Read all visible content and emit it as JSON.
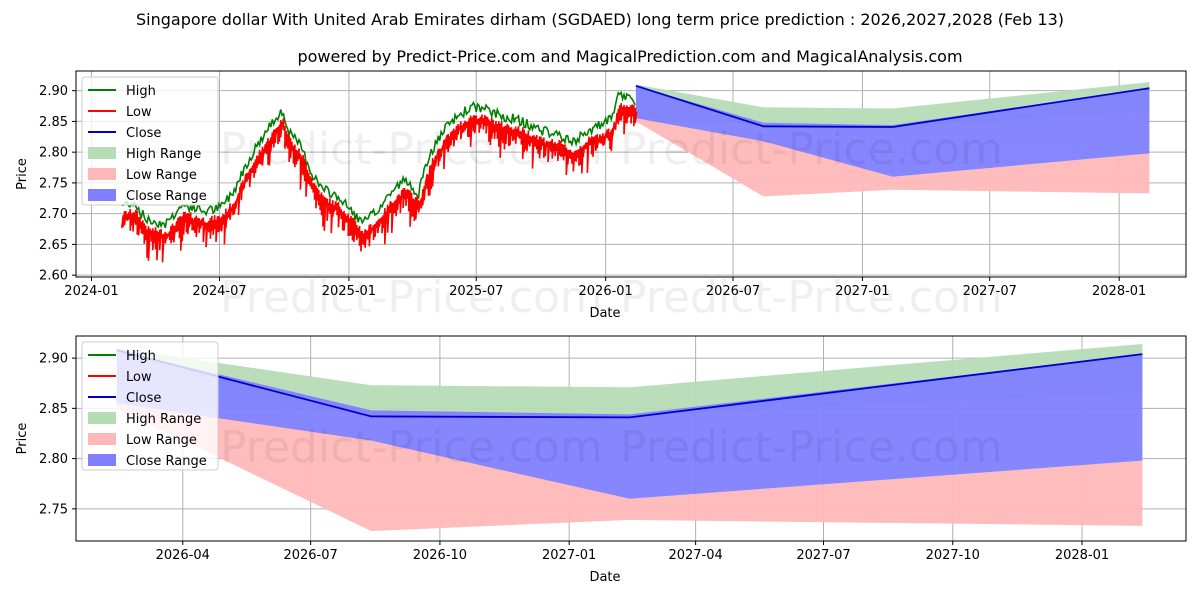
{
  "title": "Singapore dollar With United Arab Emirates dirham (SGDAED) long term price prediction : 2026,2027,2028 (Feb 13)",
  "subtitle": "powered by Predict-Price.com and MagicalPrediction.com and MagicalAnalysis.com",
  "watermark": "Predict-Price.com",
  "colors": {
    "high": "#008000",
    "low": "#ff0000",
    "close": "#0000cc",
    "high_range": "#b6dcb6",
    "low_range": "#ffb8b8",
    "close_range": "#7f7fff"
  },
  "legend": [
    "High",
    "Low",
    "Close",
    "High Range",
    "Low Range",
    "Close Range"
  ],
  "chart_data": [
    {
      "type": "line",
      "name": "top",
      "xlabel": "Date",
      "ylabel": "Price",
      "xlim": [
        "2023-12-10",
        "2028-04-05"
      ],
      "ylim": [
        2.597,
        2.932
      ],
      "yticks": [
        "2.60",
        "2.65",
        "2.70",
        "2.75",
        "2.80",
        "2.85",
        "2.90"
      ],
      "xticks": [
        [
          "2024-01-01",
          "2024-01"
        ],
        [
          "2024-07-01",
          "2024-07"
        ],
        [
          "2025-01-01",
          "2025-01"
        ],
        [
          "2025-07-01",
          "2025-07"
        ],
        [
          "2026-01-01",
          "2026-01"
        ],
        [
          "2026-07-01",
          "2026-07"
        ],
        [
          "2027-01-01",
          "2027-01"
        ],
        [
          "2027-07-01",
          "2027-07"
        ],
        [
          "2028-01-01",
          "2028-01"
        ]
      ],
      "history_close": [
        [
          "2024-02-13",
          2.7
        ],
        [
          "2024-03-01",
          2.705
        ],
        [
          "2024-03-20",
          2.675
        ],
        [
          "2024-04-15",
          2.67
        ],
        [
          "2024-05-10",
          2.7
        ],
        [
          "2024-06-10",
          2.69
        ],
        [
          "2024-07-01",
          2.695
        ],
        [
          "2024-07-20",
          2.72
        ],
        [
          "2024-08-05",
          2.76
        ],
        [
          "2024-08-25",
          2.8
        ],
        [
          "2024-09-15",
          2.835
        ],
        [
          "2024-09-27",
          2.855
        ],
        [
          "2024-10-10",
          2.815
        ],
        [
          "2024-10-25",
          2.795
        ],
        [
          "2024-11-10",
          2.75
        ],
        [
          "2024-11-25",
          2.725
        ],
        [
          "2024-12-15",
          2.715
        ],
        [
          "2025-01-05",
          2.69
        ],
        [
          "2025-01-20",
          2.67
        ],
        [
          "2025-02-10",
          2.69
        ],
        [
          "2025-03-01",
          2.72
        ],
        [
          "2025-03-20",
          2.74
        ],
        [
          "2025-04-10",
          2.72
        ],
        [
          "2025-04-25",
          2.78
        ],
        [
          "2025-05-15",
          2.82
        ],
        [
          "2025-06-05",
          2.845
        ],
        [
          "2025-06-25",
          2.86
        ],
        [
          "2025-07-15",
          2.855
        ],
        [
          "2025-08-05",
          2.845
        ],
        [
          "2025-08-25",
          2.84
        ],
        [
          "2025-09-15",
          2.83
        ],
        [
          "2025-10-05",
          2.82
        ],
        [
          "2025-10-25",
          2.815
        ],
        [
          "2025-11-15",
          2.8
        ],
        [
          "2025-12-05",
          2.82
        ],
        [
          "2025-12-25",
          2.83
        ],
        [
          "2026-01-10",
          2.84
        ],
        [
          "2026-01-20",
          2.88
        ],
        [
          "2026-02-13",
          2.87
        ]
      ],
      "forecast": {
        "dates": [
          "2026-02-13",
          "2026-08-13",
          "2027-02-13",
          "2028-02-13"
        ],
        "close": [
          2.908,
          2.842,
          2.841,
          2.904
        ],
        "high_range_top": [
          2.91,
          2.873,
          2.871,
          2.914
        ],
        "high_range_bottom": [
          2.855,
          2.846,
          2.843,
          2.865
        ],
        "low_range_top": [
          2.855,
          2.82,
          2.76,
          2.798
        ],
        "low_range_bottom": [
          2.85,
          2.728,
          2.739,
          2.733
        ],
        "close_range_top": [
          2.908,
          2.848,
          2.844,
          2.904
        ],
        "close_range_bottom": [
          2.855,
          2.818,
          2.76,
          2.798
        ]
      }
    },
    {
      "type": "area",
      "name": "bottom",
      "xlabel": "Date",
      "ylabel": "Price",
      "xlim": [
        "2026-01-15",
        "2028-03-15"
      ],
      "ylim": [
        2.718,
        2.922
      ],
      "yticks": [
        "2.75",
        "2.80",
        "2.85",
        "2.90"
      ],
      "xticks": [
        [
          "2026-04-01",
          "2026-04"
        ],
        [
          "2026-07-01",
          "2026-07"
        ],
        [
          "2026-10-01",
          "2026-10"
        ],
        [
          "2027-01-01",
          "2027-01"
        ],
        [
          "2027-04-01",
          "2027-04"
        ],
        [
          "2027-07-01",
          "2027-07"
        ],
        [
          "2027-10-01",
          "2027-10"
        ],
        [
          "2028-01-01",
          "2028-01"
        ]
      ],
      "forecast": {
        "dates": [
          "2026-02-13",
          "2026-08-13",
          "2027-02-13",
          "2028-02-13"
        ],
        "close": [
          2.908,
          2.842,
          2.841,
          2.904
        ],
        "high_range_top": [
          2.91,
          2.873,
          2.871,
          2.914
        ],
        "high_range_bottom": [
          2.855,
          2.846,
          2.843,
          2.865
        ],
        "low_range_top": [
          2.855,
          2.82,
          2.76,
          2.798
        ],
        "low_range_bottom": [
          2.85,
          2.728,
          2.739,
          2.733
        ],
        "close_range_top": [
          2.908,
          2.848,
          2.844,
          2.904
        ],
        "close_range_bottom": [
          2.855,
          2.818,
          2.76,
          2.798
        ]
      }
    }
  ]
}
